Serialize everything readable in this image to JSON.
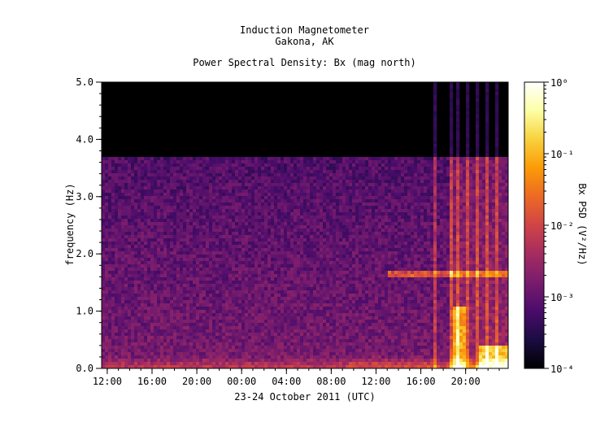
{
  "chart_data": {
    "type": "heatmap",
    "title": "Induction Magnetometer",
    "subtitle": "Gakona, AK",
    "plot_title": "Power Spectral Density: Bx (mag north)",
    "xlabel": "23-24 October 2011 (UTC)",
    "ylabel": "frequency (Hz)",
    "colorbar_label": "Bx PSD (V²/Hz)",
    "ylim": [
      0,
      5
    ],
    "y_ticks": [
      "0.0",
      "1.0",
      "2.0",
      "3.0",
      "4.0",
      "5.0"
    ],
    "x_ticks": [
      "12:00",
      "16:00",
      "20:00",
      "00:00",
      "04:00",
      "08:00",
      "12:00",
      "16:00",
      "20:00"
    ],
    "x_range_hours": [
      11.5,
      47.8
    ],
    "colorbar_ticks": [
      "10⁻⁴",
      "10⁻³",
      "10⁻²",
      "10⁻¹",
      "10⁰"
    ],
    "colorbar_range_log10": [
      -4,
      0
    ],
    "colormap": [
      "#000000",
      "#1b0c41",
      "#4a0c6b",
      "#781c6d",
      "#a52c60",
      "#cf4446",
      "#ed6925",
      "#fb9b06",
      "#f7d13d",
      "#fcffa4",
      "#ffffff"
    ]
  }
}
